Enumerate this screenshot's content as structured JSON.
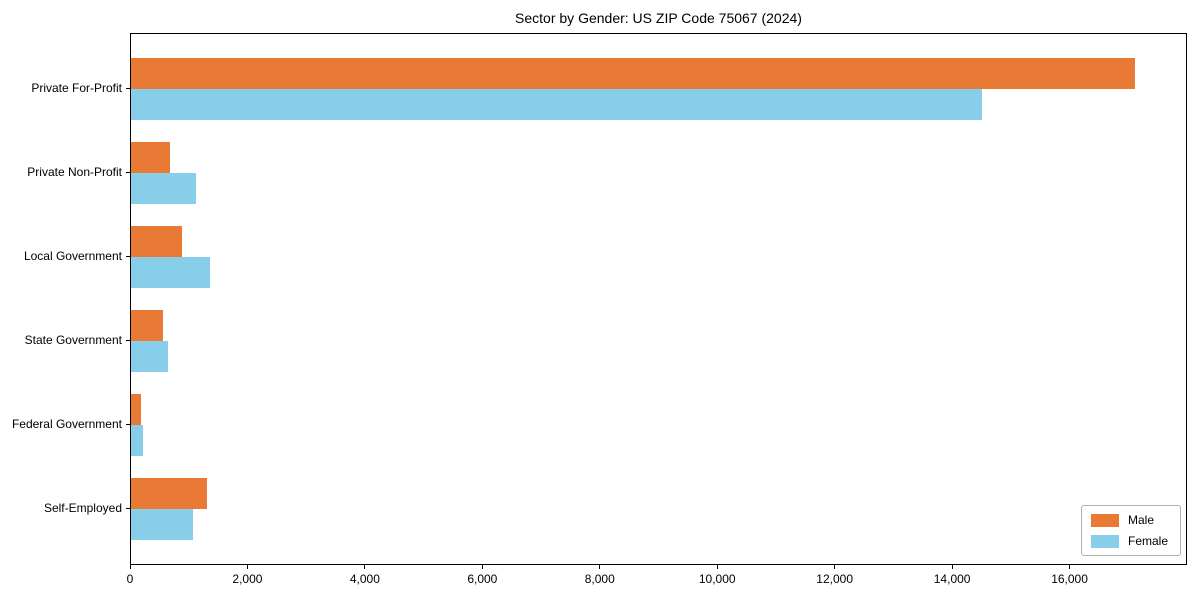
{
  "chart_data": {
    "type": "bar",
    "orientation": "horizontal",
    "title": "Sector by Gender: US ZIP Code 75067 (2024)",
    "categories": [
      "Private For-Profit",
      "Private Non-Profit",
      "Local Government",
      "State Government",
      "Federal Government",
      "Self-Employed"
    ],
    "series": [
      {
        "name": "Male",
        "color": "#e87a36",
        "values": [
          17100,
          670,
          870,
          550,
          170,
          1300
        ]
      },
      {
        "name": "Female",
        "color": "#87ceeb",
        "values": [
          14500,
          1100,
          1350,
          630,
          200,
          1050
        ]
      }
    ],
    "xlabel": "",
    "ylabel": "",
    "xlim": [
      0,
      18000
    ],
    "xticks": [
      0,
      2000,
      4000,
      6000,
      8000,
      10000,
      12000,
      14000,
      16000
    ],
    "xtick_labels": [
      "0",
      "2,000",
      "4,000",
      "6,000",
      "8,000",
      "10,000",
      "12,000",
      "14,000",
      "16,000"
    ],
    "grid": false,
    "legend": {
      "position": "lower right",
      "entries": [
        "Male",
        "Female"
      ]
    }
  }
}
